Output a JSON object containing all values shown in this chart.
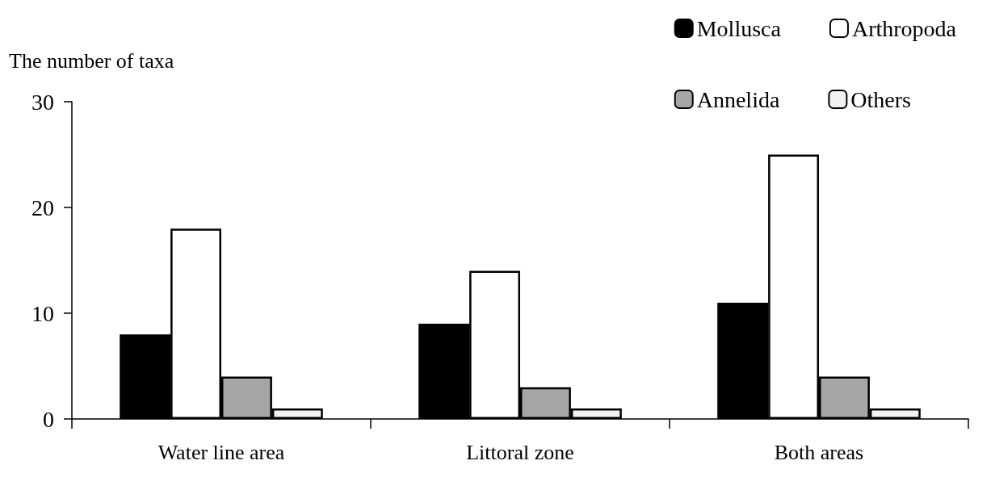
{
  "chart_data": {
    "type": "bar",
    "ylabel": "The number of taxa",
    "categories": [
      "Water line area",
      "Littoral zone",
      "Both areas"
    ],
    "series": [
      {
        "name": "Mollusca",
        "color": "#000000",
        "values": [
          8,
          9,
          11
        ]
      },
      {
        "name": "Arthropoda",
        "color": "#ffffff",
        "values": [
          18,
          14,
          25
        ]
      },
      {
        "name": "Annelida",
        "color": "#a6a6a6",
        "values": [
          4,
          3,
          4
        ]
      },
      {
        "name": "Others",
        "color": "#f2f2f2",
        "values": [
          1,
          1,
          1
        ]
      }
    ],
    "ylim": [
      0,
      30
    ],
    "yticks": [
      0,
      10,
      20,
      30
    ],
    "grid": false,
    "legend": "top right"
  }
}
